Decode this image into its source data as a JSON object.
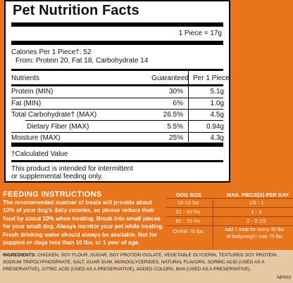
{
  "nutrition": {
    "title": "Pet Nutrition Facts",
    "serving": "1 Piece = 17g",
    "calories_line": "Calories Per 1 Piece†: 52",
    "from_line": "From: Protein 20, Fat 18, Carbohydrate 14",
    "col_nutrients": "Nutrients",
    "col_guaranteed": "Guaranteed",
    "col_per_piece": "Per 1 Piece",
    "rows": [
      {
        "name": "Protein (MIN)",
        "guaranteed": "30%",
        "per_piece": "5.1g"
      },
      {
        "name": "Fat (MIN)",
        "guaranteed": "6%",
        "per_piece": "1.0g"
      },
      {
        "name": "Total Carbohydrate† (MAX)",
        "guaranteed": "26.5%",
        "per_piece": "4.5g"
      },
      {
        "name": "Dietary Fiber (MAX)",
        "guaranteed": "5.5%",
        "per_piece": "0.94g"
      },
      {
        "name": "Moisture (MAX)",
        "guaranteed": "25%",
        "per_piece": "4.3g"
      }
    ],
    "calculated_note": "†Calculated Value",
    "disclaimer_line1": "This product is intended for intermittent",
    "disclaimer_line2": "or supplemental feeding only."
  },
  "feeding": {
    "title": "FEEDING INSTRUCTIONS",
    "text": "The recommended number of treats will provide about 10% of your dog's daily calories, so please reduce their food by about 10% when treating. Break into small pieces for your small dog. Always monitor your pet while treating. Fresh drinking water should always be available. Not for puppies or dogs less than 10 lbs. or 1 year of age.",
    "col_size": "DOG SIZE",
    "col_pieces": "MAX. PIECE(S) PER DAY",
    "rows": [
      {
        "size": "10-20 lbs",
        "pieces": "1/2 - 1"
      },
      {
        "size": "21 - 50 lbs",
        "pieces": "1 - 2"
      },
      {
        "size": "51 - 75 lbs",
        "pieces": "2 - 2 1/2"
      }
    ],
    "over_size": "OVER 75 lbs",
    "over_pieces_line1": "Add 1 treat for every 40 lbs",
    "over_pieces_line2": "of bodyweight over 75 lbs"
  },
  "ingredients": {
    "label": "INGREDIENTS:",
    "text": "CHICKEN, SOY FLOUR, SUGAR, SOY PROTEIN ISOLATE, VEGETABLE GLYCERIN, TEXTURED SOY PROTEIN, SODIUM TRIPOLYPHOSPHATE, SALT, GUAR GUM, MONOGLYCERIDES, NATURAL FLAVORS, SORBIC ACID (USED AS A PRESERVATIVE), CITRIC ACID (USED AS A PRESERVATIVE), ADDED COLORS, BHA (USED AS A PRESERVATIVE).",
    "code": "NP003"
  },
  "colors": {
    "background": "#e8751c",
    "ingredients_band": "#e6c9a2",
    "panel": "#ffffff"
  }
}
